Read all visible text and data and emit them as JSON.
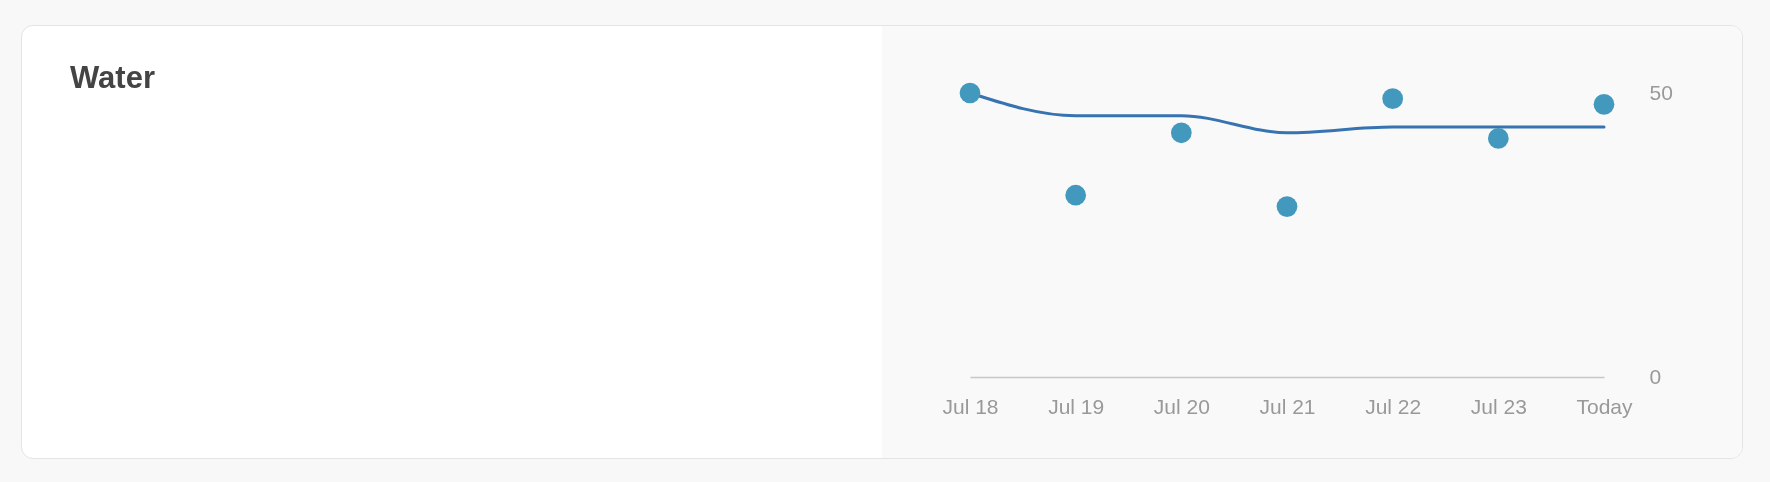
{
  "chart_data": {
    "type": "scatter",
    "title": "Water",
    "categories": [
      "Jul 18",
      "Jul 19",
      "Jul 20",
      "Jul 21",
      "Jul 22",
      "Jul 23",
      "Today"
    ],
    "series": [
      {
        "type": "line",
        "color": "#3673b0",
        "values": [
          50,
          46,
          46,
          43,
          44,
          44,
          44
        ]
      },
      {
        "color": "#4399bd",
        "values": [
          50,
          32,
          43,
          30,
          49,
          42,
          48
        ]
      }
    ],
    "ylim": [
      0,
      50
    ],
    "yticks": [
      0,
      50
    ]
  }
}
